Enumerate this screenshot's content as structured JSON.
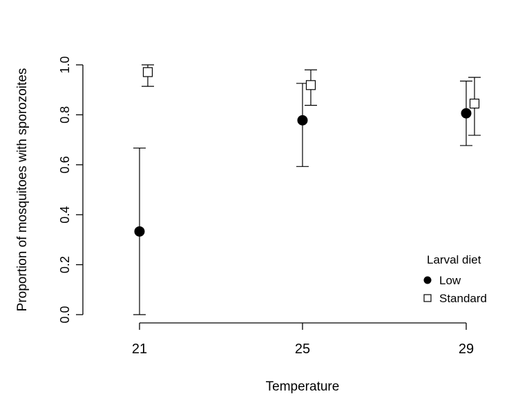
{
  "chart_data": {
    "type": "scatter",
    "title": "",
    "xlabel": "Temperature",
    "ylabel": "Proportion of mosquitoes with sporozoites",
    "categories": [
      "21",
      "25",
      "29"
    ],
    "ylim": [
      0,
      1
    ],
    "yticks": [
      "0.0",
      "0.2",
      "0.4",
      "0.6",
      "0.8",
      "1.0"
    ],
    "legend": {
      "title": "Larval diet",
      "position": "bottom-right"
    },
    "series": [
      {
        "name": "Low",
        "marker": "filled-circle",
        "color": "#000000",
        "points": [
          {
            "x": "21",
            "y": 0.333,
            "lower": 0.0,
            "upper": 0.667
          },
          {
            "x": "25",
            "y": 0.778,
            "lower": 0.593,
            "upper": 0.926
          },
          {
            "x": "29",
            "y": 0.806,
            "lower": 0.677,
            "upper": 0.935
          }
        ]
      },
      {
        "name": "Standard",
        "marker": "open-square",
        "color": "#000000",
        "points": [
          {
            "x": "21",
            "y": 0.971,
            "lower": 0.914,
            "upper": 1.0
          },
          {
            "x": "25",
            "y": 0.919,
            "lower": 0.838,
            "upper": 0.98
          },
          {
            "x": "29",
            "y": 0.845,
            "lower": 0.718,
            "upper": 0.95
          }
        ]
      }
    ]
  }
}
